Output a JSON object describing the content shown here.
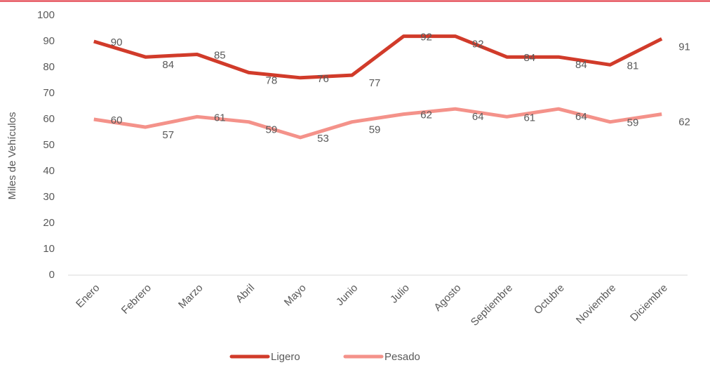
{
  "chart_data": {
    "type": "line",
    "y_label": "Miles de Vehículos",
    "categories": [
      "Enero",
      "Febrero",
      "Marzo",
      "Abril",
      "Mayo",
      "Junio",
      "Julio",
      "Agosto",
      "Septiembre",
      "Octubre",
      "Noviembre",
      "Diciembre"
    ],
    "series": [
      {
        "name": "Ligero",
        "color": "#d13b2a",
        "values": [
          90,
          84,
          85,
          78,
          76,
          77,
          92,
          92,
          84,
          84,
          81,
          91
        ]
      },
      {
        "name": "Pesado",
        "color": "#f4928a",
        "values": [
          60,
          57,
          61,
          59,
          53,
          59,
          62,
          64,
          61,
          64,
          59,
          62
        ]
      }
    ],
    "ylim": [
      0,
      100
    ],
    "yticks": [
      0,
      10,
      20,
      30,
      40,
      50,
      60,
      70,
      80,
      90,
      100
    ],
    "grid": false,
    "legend": "bottom"
  }
}
